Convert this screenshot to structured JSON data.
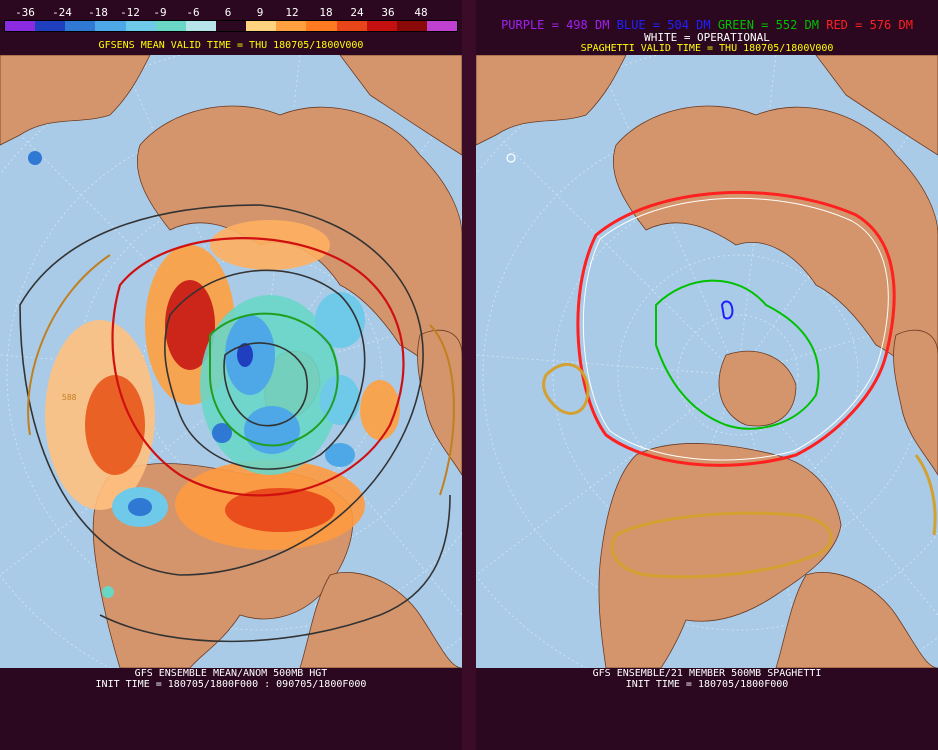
{
  "left": {
    "colorbar": {
      "ticks": [
        "-36",
        "-24",
        "-18",
        "-12",
        "-9",
        "-6",
        "6",
        "9",
        "12",
        "18",
        "24",
        "36",
        "48"
      ],
      "colors": [
        "#8a2be2",
        "#1f3fbf",
        "#2f78d4",
        "#4ea8e8",
        "#6fc9e8",
        "#69d6c6",
        "#b7e3ea",
        "#2b0820",
        "#ffd27f",
        "#ffa040",
        "#ff7a20",
        "#e8461a",
        "#c41010",
        "#8a0a0a",
        "#c040d0"
      ]
    },
    "valid_title": "GFSENS MEAN VALID TIME = THU 180705/1800V000",
    "footer_line1": "GFS ENSEMBLE MEAN/ANOM 500MB HGT",
    "footer_line2": "INIT TIME = 180705/1800F000 : 090705/1800F000",
    "map_label": "588"
  },
  "right": {
    "legend": {
      "purple": "PURPLE = 498 DM",
      "blue": "BLUE = 504 DM",
      "green": "GREEN = 552 DM",
      "red": "RED = 576 DM"
    },
    "operational": "WHITE = OPERATIONAL",
    "valid_title": "SPAGHETTI VALID TIME = THU 180705/1800V000",
    "footer_line1": "GFS ENSEMBLE/21 MEMBER 500MB SPAGHETTI",
    "footer_line2": "INIT TIME = 180705/1800F000"
  },
  "colors": {
    "ocean": "#a9cbe8",
    "land": "#d4956c",
    "background": "#2b0820",
    "legend_purple": "#a020f0",
    "legend_blue": "#2020ff",
    "legend_green": "#00c000",
    "legend_red": "#ff2020",
    "title_yellow": "#ffff00"
  }
}
